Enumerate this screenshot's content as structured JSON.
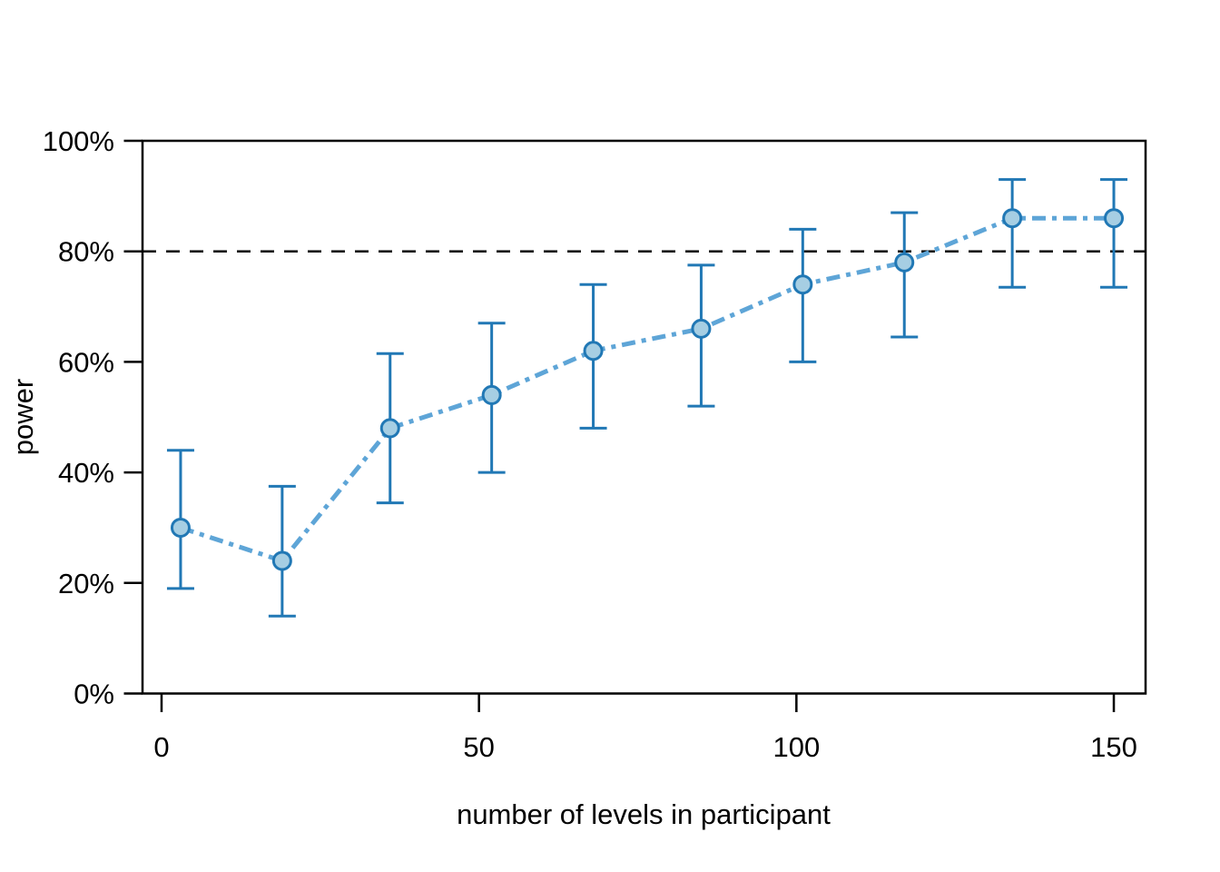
{
  "figure": {
    "kind": "power-curve-plot",
    "background": "#ffffff"
  },
  "chart_data": {
    "type": "line",
    "title": "",
    "xlabel": "number of levels in participant",
    "ylabel": "power",
    "grid": false,
    "legend": "none",
    "xlim": [
      -3,
      155
    ],
    "ylim_pct": [
      0,
      100
    ],
    "x_ticks": [
      0,
      50,
      100,
      150
    ],
    "x_tick_labels": [
      "0",
      "50",
      "100",
      "150"
    ],
    "y_ticks_pct": [
      0,
      20,
      40,
      60,
      80,
      100
    ],
    "y_tick_labels": [
      "0%",
      "20%",
      "40%",
      "60%",
      "80%",
      "100%"
    ],
    "threshold_pct": 80,
    "series": [
      {
        "name": "power",
        "style": "dash-dot line with circle markers and vertical error bars",
        "x": [
          3,
          19,
          36,
          52,
          68,
          85,
          101,
          117,
          134,
          150
        ],
        "y_pct": [
          30,
          24,
          48,
          54,
          62,
          66,
          74,
          78,
          86,
          86
        ],
        "ci_low_pct": [
          19,
          14,
          34.5,
          40,
          48,
          52,
          60,
          64.5,
          73.5,
          73.5
        ],
        "ci_high_pct": [
          44,
          37.5,
          61.5,
          67,
          74,
          77.5,
          84,
          87,
          93,
          93
        ]
      }
    ],
    "colors": {
      "marker_fill": "#a6cee3",
      "marker_edge": "#2178b5",
      "error_bar": "#2178b5",
      "trend_line": "#5ea5d7",
      "threshold_line": "#000000",
      "axis": "#000000",
      "background": "#ffffff"
    }
  }
}
